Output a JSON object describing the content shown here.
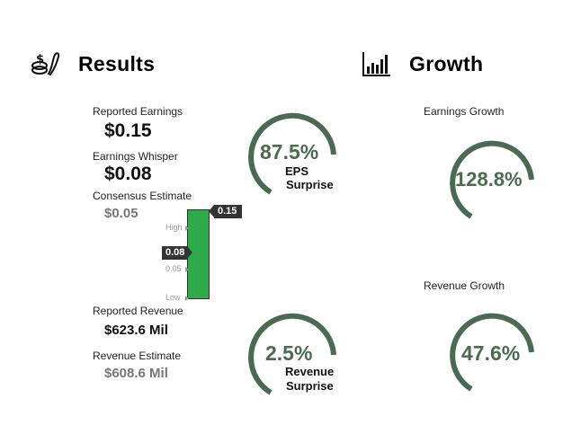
{
  "results": {
    "title": "Results",
    "icon": "money-hand-icon",
    "reported_earnings_label": "Reported Earnings",
    "reported_earnings_value": "$0.15",
    "earnings_whisper_label": "Earnings Whisper",
    "earnings_whisper_value": "$0.08",
    "consensus_label": "Consensus Estimate",
    "consensus_value": "$0.05",
    "reported_revenue_label": "Reported Revenue",
    "reported_revenue_value": "$623.6 Mil",
    "revenue_estimate_label": "Revenue Estimate",
    "revenue_estimate_value": "$608.6 Mil"
  },
  "range_chart": {
    "high_label": "High",
    "mid_label": "0.05",
    "low_label": "Low",
    "top_tag": "0.15",
    "whisper_tag": "0.08",
    "bar_color": "#2eaa4a"
  },
  "eps_surprise": {
    "value": "87.5%",
    "caption_line1": "EPS",
    "caption_line2": "Surprise",
    "fraction": 0.875
  },
  "revenue_surprise": {
    "value": "2.5%",
    "caption_line1": "Revenue",
    "caption_line2": "Surprise",
    "fraction": 0.025
  },
  "growth": {
    "title": "Growth",
    "icon": "bar-chart-icon",
    "earnings_growth_label": "Earnings Growth",
    "earnings_growth_value": "128.8%",
    "revenue_growth_label": "Revenue Growth",
    "revenue_growth_value": "47.6%"
  },
  "colors": {
    "gauge": "#4a6b52",
    "bar": "#2eaa4a",
    "tag": "#333333"
  }
}
